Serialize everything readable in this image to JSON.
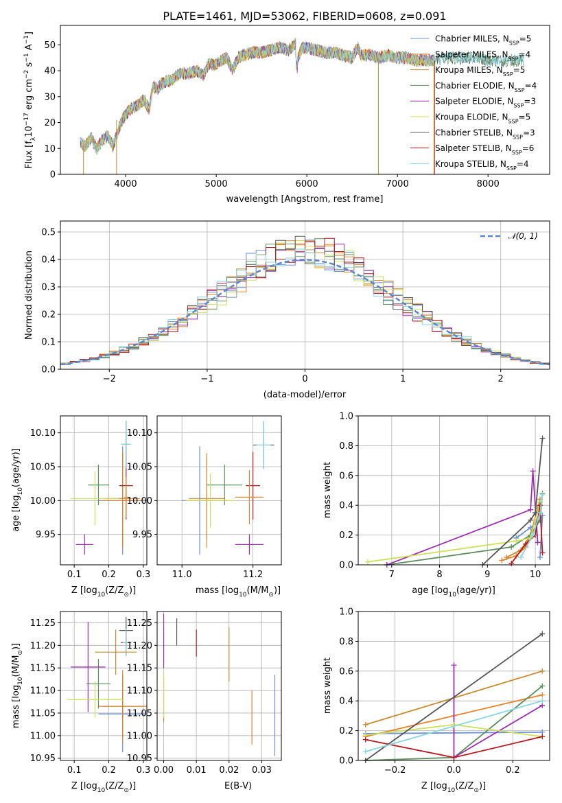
{
  "title": "PLATE=1461, MJD=53062, FIBERID=0608, z=0.091",
  "models": [
    {
      "label": "Chabrier MILES, N",
      "nssp": "=5",
      "color": "#6a8fd8"
    },
    {
      "label": "Salpeter MILES, N",
      "nssp": "=4",
      "color": "#e8832a"
    },
    {
      "label": "Kroupa MILES, N",
      "nssp": "=5",
      "color": "#c88a2e"
    },
    {
      "label": "Chabrier ELODIE, N",
      "nssp": "=4",
      "color": "#5b8f5b"
    },
    {
      "label": "Salpeter ELODIE, N",
      "nssp": "=3",
      "color": "#9b2fb0"
    },
    {
      "label": "Kroupa ELODIE, N",
      "nssp": "=5",
      "color": "#cde05a"
    },
    {
      "label": "Chabrier STELIB, N",
      "nssp": "=3",
      "color": "#555555"
    },
    {
      "label": "Salpeter STELIB, N",
      "nssp": "=6",
      "color": "#b5191c"
    },
    {
      "label": "Kroupa STELIB, N",
      "nssp": "=4",
      "color": "#87d6e0"
    }
  ],
  "ssp_sub": "SSP",
  "legend_gauss": "𝒩(0, 1)",
  "chart_data": [
    {
      "type": "line",
      "xlabel": "wavelength [Angstrom, rest frame]",
      "ylabel": "Flux [f",
      "ylabel_sub": "λ",
      "ylabel_mid": "10",
      "ylabel_exp1": "−17",
      "ylabel_mid2": " erg cm",
      "ylabel_exp2": "−2",
      "ylabel_mid3": " s",
      "ylabel_exp3": "−1",
      "ylabel_mid4": " A",
      "ylabel_exp4": "−1",
      "ylabel_end": "]",
      "xlim": [
        3280,
        8680
      ],
      "ylim": [
        0,
        57.5
      ],
      "xticks": [
        4000,
        5000,
        6000,
        7000,
        8000
      ],
      "yticks": [
        0,
        10,
        20,
        30,
        40,
        50
      ],
      "envelope": [
        [
          3500,
          12
        ],
        [
          3560,
          11
        ],
        [
          3620,
          14
        ],
        [
          3680,
          10
        ],
        [
          3740,
          13
        ],
        [
          3800,
          15
        ],
        [
          3860,
          11
        ],
        [
          3920,
          17
        ],
        [
          3960,
          21
        ],
        [
          4000,
          23
        ],
        [
          4050,
          25
        ],
        [
          4100,
          26
        ],
        [
          4150,
          27
        ],
        [
          4200,
          29
        ],
        [
          4260,
          25
        ],
        [
          4300,
          34
        ],
        [
          4350,
          33
        ],
        [
          4400,
          35
        ],
        [
          4450,
          36
        ],
        [
          4500,
          36
        ],
        [
          4560,
          38
        ],
        [
          4620,
          39
        ],
        [
          4700,
          39
        ],
        [
          4780,
          40
        ],
        [
          4860,
          38
        ],
        [
          4920,
          43
        ],
        [
          4980,
          42
        ],
        [
          5050,
          44
        ],
        [
          5120,
          45
        ],
        [
          5180,
          40
        ],
        [
          5240,
          45
        ],
        [
          5300,
          46
        ],
        [
          5400,
          47
        ],
        [
          5500,
          47
        ],
        [
          5600,
          48
        ],
        [
          5700,
          49
        ],
        [
          5800,
          48
        ],
        [
          5890,
          51
        ],
        [
          5900,
          45
        ],
        [
          5950,
          49
        ],
        [
          6000,
          49
        ],
        [
          6100,
          48
        ],
        [
          6200,
          47
        ],
        [
          6300,
          47
        ],
        [
          6400,
          46
        ],
        [
          6500,
          45
        ],
        [
          6563,
          49
        ],
        [
          6600,
          46
        ],
        [
          6700,
          46
        ],
        [
          6800,
          45
        ],
        [
          6900,
          46
        ],
        [
          7000,
          45
        ],
        [
          7100,
          45
        ],
        [
          7200,
          44
        ],
        [
          7300,
          44
        ],
        [
          7400,
          44
        ],
        [
          7500,
          45
        ],
        [
          7600,
          45
        ],
        [
          7700,
          45
        ],
        [
          7800,
          45
        ],
        [
          7900,
          45
        ],
        [
          8000,
          44
        ],
        [
          8100,
          44
        ],
        [
          8200,
          44
        ],
        [
          8300,
          44
        ],
        [
          8400,
          44
        ],
        [
          8500,
          43
        ],
        [
          8600,
          43
        ],
        [
          8680,
          43
        ]
      ]
    },
    {
      "type": "histogram",
      "xlabel": "(data-model)/error",
      "ylabel": "Normed distribution",
      "xlim": [
        -2.5,
        2.5
      ],
      "ylim": [
        0,
        0.54
      ],
      "xticks": [
        -2,
        -1,
        0,
        1,
        2
      ],
      "yticks": [
        0.0,
        0.1,
        0.2,
        0.3,
        0.4,
        0.5
      ],
      "bin_width": 0.1,
      "gaussian": {
        "mean": 0,
        "sigma": 1
      }
    },
    {
      "type": "errorbar",
      "xlabel": "Z [log",
      "xlabel_sub": "10",
      "xlabel_rest": "(Z/Z",
      "xlabel_sun": "⊙",
      "xlabel_end": ")]",
      "ylabel": "age  [log",
      "ylabel_sub": "10",
      "ylabel_rest": "(age/yr)]",
      "xlim": [
        0.06,
        0.31
      ],
      "ylim": [
        9.905,
        10.125
      ],
      "xticks": [
        0.1,
        0.2,
        0.3
      ],
      "yticks": [
        9.95,
        10.0,
        10.05,
        10.1
      ],
      "points": [
        {
          "model": 0,
          "x": 0.24,
          "y": 10.0,
          "xe": 0.07,
          "ye": 0.08
        },
        {
          "model": 1,
          "x": 0.24,
          "y": 10.0,
          "xe": 0.06,
          "ye": 0.07
        },
        {
          "model": 2,
          "x": 0.24,
          "y": 10.003,
          "xe": 0.05,
          "ye": 0.07
        },
        {
          "model": 3,
          "x": 0.17,
          "y": 10.023,
          "xe": 0.03,
          "ye": 0.03
        },
        {
          "model": 4,
          "x": 0.13,
          "y": 9.935,
          "xe": 0.025,
          "ye": 0.015
        },
        {
          "model": 5,
          "x": 0.16,
          "y": 10.003,
          "xe": 0.07,
          "ye": 0.04
        },
        {
          "model": 6,
          "x": 0.25,
          "y": 10.083,
          "xe": 0.01,
          "ye": 0.035
        },
        {
          "model": 7,
          "x": 0.25,
          "y": 10.022,
          "xe": 0.02,
          "ye": 0.05
        },
        {
          "model": 8,
          "x": 0.25,
          "y": 10.083,
          "xe": 0.015,
          "ye": 0.035
        },
        {
          "model": 1,
          "x": 0.25,
          "y": 10.005,
          "xe": 0.005,
          "ye": 0.03
        }
      ]
    },
    {
      "type": "errorbar",
      "xlabel": "mass [log",
      "xlabel_sub": "10",
      "xlabel_rest": "(M/M",
      "xlabel_sun": "⊙",
      "xlabel_end": ")]",
      "xlim": [
        10.93,
        11.28
      ],
      "ylim": [
        9.905,
        10.125
      ],
      "xticks": [
        11.0,
        11.2
      ],
      "yticks": [
        9.95,
        10.0,
        10.05,
        10.1
      ],
      "points": [
        {
          "model": 0,
          "x": 11.05,
          "y": 10.0,
          "xe": 0.05,
          "ye": 0.08
        },
        {
          "model": 1,
          "x": 11.07,
          "y": 10.0,
          "xe": 0.06,
          "ye": 0.07
        },
        {
          "model": 2,
          "x": 11.07,
          "y": 10.003,
          "xe": 0.05,
          "ye": 0.06
        },
        {
          "model": 3,
          "x": 11.12,
          "y": 10.023,
          "xe": 0.05,
          "ye": 0.03
        },
        {
          "model": 4,
          "x": 11.19,
          "y": 9.935,
          "xe": 0.04,
          "ye": 0.015
        },
        {
          "model": 5,
          "x": 11.08,
          "y": 10.0,
          "xe": 0.07,
          "ye": 0.04
        },
        {
          "model": 6,
          "x": 11.23,
          "y": 10.082,
          "xe": 0.03,
          "ye": 0.035
        },
        {
          "model": 7,
          "x": 11.2,
          "y": 10.022,
          "xe": 0.02,
          "ye": 0.05
        },
        {
          "model": 8,
          "x": 11.23,
          "y": 10.082,
          "xe": 0.02,
          "ye": 0.035
        },
        {
          "model": 1,
          "x": 11.19,
          "y": 10.005,
          "xe": 0.04,
          "ye": 0.04
        }
      ]
    },
    {
      "type": "line",
      "xlabel": "age  [log",
      "xlabel_sub": "10",
      "xlabel_rest": "(age/yr)]",
      "ylabel": "mass weight",
      "xlim": [
        6.3,
        10.3
      ],
      "ylim": [
        0,
        1
      ],
      "xticks": [
        7,
        8,
        9,
        10
      ],
      "yticks": [
        0.0,
        0.2,
        0.4,
        0.6,
        0.8,
        1.0
      ],
      "series": [
        {
          "model": 0,
          "points": [
            [
              9.6,
              0.18
            ],
            [
              9.9,
              0.25
            ],
            [
              10.1,
              0.3
            ],
            [
              10.15,
              0.33
            ],
            [
              10.1,
              0.05
            ]
          ]
        },
        {
          "model": 1,
          "points": [
            [
              9.3,
              0.03
            ],
            [
              9.6,
              0.06
            ],
            [
              9.8,
              0.12
            ],
            [
              10.0,
              0.3
            ],
            [
              10.1,
              0.42
            ]
          ]
        },
        {
          "model": 2,
          "points": [
            [
              9.4,
              0.05
            ],
            [
              9.7,
              0.1
            ],
            [
              9.9,
              0.2
            ],
            [
              10.05,
              0.38
            ],
            [
              10.1,
              0.44
            ]
          ]
        },
        {
          "model": 3,
          "points": [
            [
              6.9,
              0.0
            ],
            [
              9.5,
              0.12
            ],
            [
              9.9,
              0.2
            ],
            [
              10.1,
              0.3
            ],
            [
              10.15,
              0.48
            ]
          ]
        },
        {
          "model": 4,
          "points": [
            [
              6.9,
              0.0
            ],
            [
              9.9,
              0.37
            ],
            [
              9.95,
              0.63
            ],
            [
              10.05,
              0.15
            ]
          ]
        },
        {
          "model": 5,
          "points": [
            [
              6.5,
              0.02
            ],
            [
              9.6,
              0.16
            ],
            [
              9.9,
              0.18
            ],
            [
              10.0,
              0.3
            ],
            [
              10.1,
              0.42
            ]
          ]
        },
        {
          "model": 6,
          "points": [
            [
              8.9,
              0.0
            ],
            [
              9.9,
              0.3
            ],
            [
              10.0,
              0.35
            ],
            [
              10.15,
              0.85
            ]
          ]
        },
        {
          "model": 7,
          "points": [
            [
              9.5,
              0.01
            ],
            [
              9.8,
              0.14
            ],
            [
              10.0,
              0.2
            ],
            [
              10.1,
              0.4
            ],
            [
              10.15,
              0.08
            ]
          ]
        },
        {
          "model": 8,
          "points": [
            [
              9.7,
              0.05
            ],
            [
              9.95,
              0.2
            ],
            [
              10.1,
              0.35
            ],
            [
              10.15,
              0.47
            ]
          ]
        }
      ]
    },
    {
      "type": "errorbar",
      "xlabel": "Z [log",
      "xlabel_sub": "10",
      "xlabel_rest": "(Z/Z",
      "xlabel_sun": "⊙",
      "xlabel_end": ")]",
      "ylabel": "mass [log",
      "ylabel_sub": "10",
      "ylabel_rest": "(M/M",
      "ylabel_sun": "⊙",
      "ylabel_end": ")]",
      "xlim": [
        0.06,
        0.31
      ],
      "ylim": [
        10.945,
        11.275
      ],
      "xticks": [
        0.1,
        0.2,
        0.3
      ],
      "yticks": [
        10.95,
        11.0,
        11.05,
        11.1,
        11.15,
        11.2,
        11.25
      ],
      "points": [
        {
          "model": 0,
          "x": 0.24,
          "y": 11.048,
          "xe": 0.07,
          "ye": 0.085
        },
        {
          "model": 1,
          "x": 0.24,
          "y": 11.065,
          "xe": 0.07,
          "ye": 0.08
        },
        {
          "model": 2,
          "x": 0.24,
          "y": 11.065,
          "xe": 0.06,
          "ye": 0.07
        },
        {
          "model": 3,
          "x": 0.17,
          "y": 11.115,
          "xe": 0.035,
          "ye": 0.055
        },
        {
          "model": 4,
          "x": 0.14,
          "y": 11.152,
          "xe": 0.05,
          "ye": 0.1
        },
        {
          "model": 5,
          "x": 0.16,
          "y": 11.08,
          "xe": 0.08,
          "ye": 0.04
        },
        {
          "model": 6,
          "x": 0.25,
          "y": 11.233,
          "xe": 0.02,
          "ye": 0.03
        },
        {
          "model": 7,
          "x": 0.25,
          "y": 11.206,
          "xe": 0.015,
          "ye": 0.03
        },
        {
          "model": 8,
          "x": 0.25,
          "y": 11.206,
          "xe": 0.01,
          "ye": 0.03
        },
        {
          "model": 2,
          "x": 0.22,
          "y": 11.185,
          "xe": 0.06,
          "ye": 0.05
        }
      ]
    },
    {
      "type": "errorbar",
      "xlabel": "E(B-V)",
      "xlim": [
        -0.002,
        0.036
      ],
      "ylim": [
        10.945,
        11.275
      ],
      "xticks": [
        0.0,
        0.01,
        0.02,
        0.03
      ],
      "yticks": [
        10.95,
        11.0,
        11.05,
        11.1,
        11.15,
        11.2,
        11.25
      ],
      "points": [
        {
          "model": 0,
          "x": 0.0,
          "y": 11.2,
          "xe": 0,
          "ye": 0.04
        },
        {
          "model": 2,
          "x": 0.0,
          "y": 11.08,
          "xe": 0,
          "ye": 0.05
        },
        {
          "model": 4,
          "x": 0.0,
          "y": 11.21,
          "xe": 0,
          "ye": 0.06
        },
        {
          "model": 5,
          "x": 0.0,
          "y": 11.09,
          "xe": 0,
          "ye": 0.05
        },
        {
          "model": 6,
          "x": 0.004,
          "y": 11.23,
          "xe": 0,
          "ye": 0.03
        },
        {
          "model": 7,
          "x": 0.01,
          "y": 11.205,
          "xe": 0,
          "ye": 0.03
        },
        {
          "model": 1,
          "x": 0.027,
          "y": 11.04,
          "xe": 0,
          "ye": 0.06
        },
        {
          "model": 0,
          "x": 0.034,
          "y": 11.045,
          "xe": 0,
          "ye": 0.09
        },
        {
          "model": 2,
          "x": 0.02,
          "y": 11.18,
          "xe": 0,
          "ye": 0.06
        }
      ]
    },
    {
      "type": "line",
      "xlabel": "Z [log",
      "xlabel_sub": "10",
      "xlabel_rest": "(Z/Z",
      "xlabel_sun": "⊙",
      "xlabel_end": ")]",
      "ylabel": "mass weight",
      "xlim": [
        -0.325,
        0.325
      ],
      "ylim": [
        0,
        1
      ],
      "xticks": [
        -0.2,
        0.0,
        0.2
      ],
      "yticks": [
        0.0,
        0.2,
        0.4,
        0.6,
        0.8,
        1.0
      ],
      "series": [
        {
          "model": 0,
          "points": [
            [
              -0.3,
              0.18
            ],
            [
              0.3,
              0.19
            ]
          ]
        },
        {
          "model": 1,
          "points": [
            [
              -0.3,
              0.16
            ],
            [
              0.0,
              0.3
            ],
            [
              0.3,
              0.44
            ]
          ]
        },
        {
          "model": 2,
          "points": [
            [
              -0.3,
              0.24
            ],
            [
              0.3,
              0.6
            ]
          ]
        },
        {
          "model": 3,
          "points": [
            [
              -0.3,
              0.0
            ],
            [
              0.0,
              0.02
            ],
            [
              0.3,
              0.5
            ]
          ]
        },
        {
          "model": 4,
          "points": [
            [
              0.0,
              0.64
            ],
            [
              0.0,
              0.02
            ],
            [
              0.3,
              0.37
            ]
          ]
        },
        {
          "model": 5,
          "points": [
            [
              -0.3,
              0.17
            ],
            [
              0.0,
              0.24
            ],
            [
              0.3,
              0.16
            ]
          ]
        },
        {
          "model": 6,
          "points": [
            [
              -0.3,
              0.0
            ],
            [
              0.3,
              0.85
            ]
          ]
        },
        {
          "model": 7,
          "points": [
            [
              -0.3,
              0.14
            ],
            [
              0.0,
              0.02
            ],
            [
              0.3,
              0.16
            ]
          ]
        },
        {
          "model": 8,
          "points": [
            [
              -0.3,
              0.06
            ],
            [
              0.3,
              0.4
            ]
          ]
        }
      ]
    }
  ]
}
